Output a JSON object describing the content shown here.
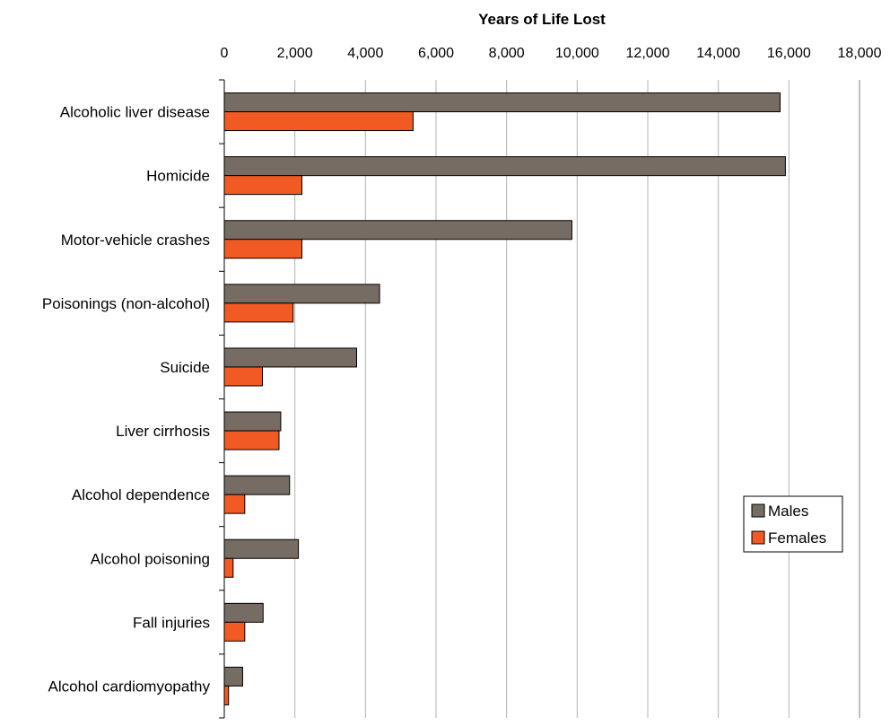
{
  "chart_data": {
    "type": "bar",
    "orientation": "horizontal",
    "title": "",
    "xlabel": "Years of Life Lost",
    "ylabel": "",
    "xlim": [
      0,
      18000
    ],
    "xticks": [
      0,
      2000,
      4000,
      6000,
      8000,
      10000,
      12000,
      14000,
      16000,
      18000
    ],
    "xtick_labels": [
      "0",
      "2,000",
      "4,000",
      "6,000",
      "8,000",
      "10,000",
      "12,000",
      "14,000",
      "16,000",
      "18,000"
    ],
    "x_axis_position": "top",
    "grid": "vertical",
    "legend_position": "right",
    "categories": [
      "Alcoholic liver disease",
      "Homicide",
      "Motor-vehicle crashes",
      "Poisonings (non-alcohol)",
      "Suicide",
      "Liver cirrhosis",
      "Alcohol dependence",
      "Alcohol poisoning",
      "Fall injuries",
      "Alcohol cardiomyopathy"
    ],
    "series": [
      {
        "name": "Males",
        "color": "#766c63",
        "values": [
          15750,
          15900,
          9850,
          4400,
          3750,
          1600,
          1850,
          2100,
          1100,
          520
        ]
      },
      {
        "name": "Females",
        "color": "#f15a22",
        "values": [
          5350,
          2200,
          2200,
          1950,
          1080,
          1550,
          580,
          250,
          580,
          120
        ]
      }
    ]
  }
}
